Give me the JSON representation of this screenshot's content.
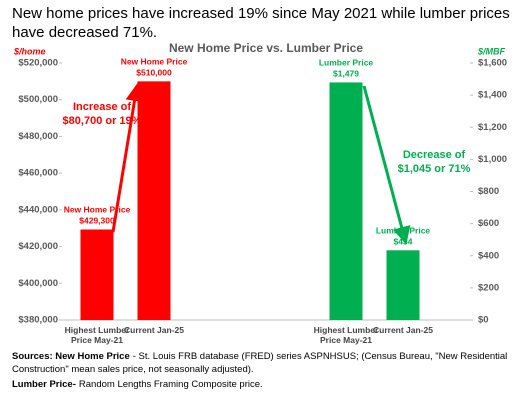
{
  "headline": "New home prices have increased 19% since May 2021 while lumber prices have decreased 71%.",
  "chart_data": {
    "type": "bar",
    "title": "New Home Price vs. Lumber Price",
    "ylabel": "$/home",
    "y2label": "$/MBF",
    "categories": [
      "Highest Lumber Price May-21",
      "Current Jan-25",
      "Highest Lumber Price May-21",
      "Current Jan-25"
    ],
    "series": [
      {
        "name": "New Home Price",
        "color": "#ff0000",
        "values": [
          429300,
          510000,
          null,
          null
        ],
        "value_labels": [
          "$429,300",
          "$510,000",
          null,
          null
        ]
      },
      {
        "name": "Lumber Price",
        "color": "#00b050",
        "axis": "y2",
        "values": [
          null,
          null,
          1479,
          434
        ],
        "value_labels": [
          null,
          null,
          "$1,479",
          "$434"
        ]
      }
    ],
    "ylim": [
      380000,
      520000
    ],
    "yticks": [
      {
        "value": 380000,
        "label": "$380,000"
      },
      {
        "value": 400000,
        "label": "$400,000"
      },
      {
        "value": 420000,
        "label": "$420,000"
      },
      {
        "value": 440000,
        "label": "$440,000"
      },
      {
        "value": 460000,
        "label": "$460,000"
      },
      {
        "value": 480000,
        "label": "$480,000"
      },
      {
        "value": 500000,
        "label": "$500,000"
      },
      {
        "value": 520000,
        "label": "$520,000"
      }
    ],
    "y2lim": [
      0,
      1600
    ],
    "y2ticks": [
      {
        "value": 0,
        "label": "$0"
      },
      {
        "value": 200,
        "label": "$200"
      },
      {
        "value": 400,
        "label": "$400"
      },
      {
        "value": 600,
        "label": "$600"
      },
      {
        "value": 800,
        "label": "$800"
      },
      {
        "value": 1000,
        "label": "$1,000"
      },
      {
        "value": 1200,
        "label": "$1,200"
      },
      {
        "value": 1400,
        "label": "$1,400"
      },
      {
        "value": 1600,
        "label": "$1,600"
      }
    ],
    "annotations": [
      "Increase of $80,700 or 19%",
      "Decrease of $1,045 or 71%"
    ]
  },
  "sources": [
    {
      "label": "Sources: New Home Price",
      "text": "- St. Louis FRB database (FRED) series ASPNHSUS; (Census Bureau, \"New Residential Construction\" mean sales price, not seasonally adjusted)."
    },
    {
      "label": "Lumber Price-",
      "text": "Random Lengths Framing Composite price."
    }
  ]
}
